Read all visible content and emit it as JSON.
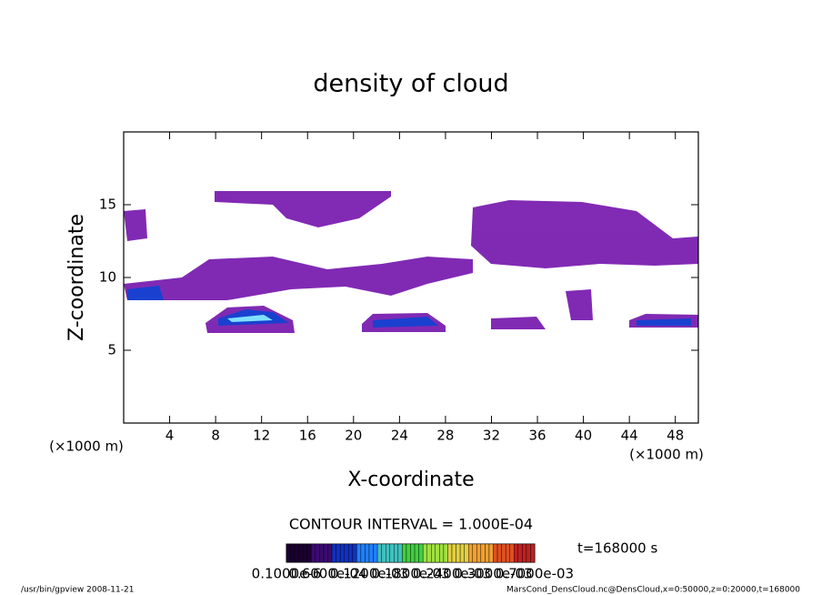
{
  "chart_data": {
    "type": "contour",
    "title": "density of cloud",
    "x_label": "X-coordinate",
    "y_label": "Z-coordinate",
    "x_unit_left": "(×1000 m)",
    "x_unit_right": "(×1000 m)",
    "xlim": [
      0,
      50
    ],
    "ylim": [
      0,
      20
    ],
    "xticks": [
      4,
      8,
      12,
      16,
      20,
      24,
      28,
      32,
      36,
      40,
      44,
      48
    ],
    "yticks": [
      5,
      10,
      15
    ],
    "contour_interval": "CONTOUR INTERVAL = 1.000E-04",
    "colorbar_labels": [
      "0.1000e-6",
      "0.6000e-04",
      "0.1200e-03",
      "0.1800e-03",
      "0.2400e-03",
      "0.3000e-03",
      "0.7000e-03"
    ],
    "colorbar_colors": [
      "#1a0030",
      "#3a0a70",
      "#1030c0",
      "#2080ff",
      "#40c0c0",
      "#40d040",
      "#a0e040",
      "#e0d040",
      "#f0a030",
      "#e05020",
      "#c02020"
    ],
    "time_label": "t=168000 s",
    "footer_left": "/usr/bin/gpview   2008-11-21",
    "footer_right": "MarsCond_DensCloud.nc@DensCloud,x=0:50000,z=0:20000,t=168000"
  }
}
